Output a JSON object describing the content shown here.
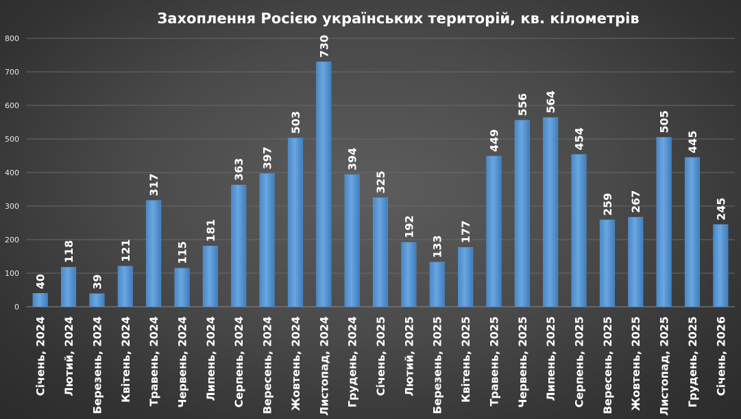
{
  "chart_data": {
    "type": "bar",
    "title": "Захоплення Росією українських територій,  кв. кілометрів",
    "xlabel": "",
    "ylabel": "",
    "ylim": [
      0,
      800
    ],
    "yticks": [
      0,
      100,
      200,
      300,
      400,
      500,
      600,
      700,
      800
    ],
    "grid": true,
    "legend": "none",
    "bar_color": "#5b9bd5",
    "categories": [
      "Січень, 2024",
      "Лютий, 2024",
      "Березень, 2024",
      "Квітень, 2024",
      "Травень, 2024",
      "Червень, 2024",
      "Липень, 2024",
      "Серпень, 2024",
      "Вересень, 2024",
      "Жовтень, 2024",
      "Листопад, 2024",
      "Грудень, 2024",
      "Січень, 2025",
      "Лютий, 2025",
      "Березень, 2025",
      "Квітень, 2025",
      "Травень, 2025",
      "Червень, 2025",
      "Липень, 2025",
      "Серпень, 2025",
      "Вересень, 2025",
      "Жовтень, 2025",
      "Листопад, 2025",
      "Грудень, 2025",
      "Січень, 2026"
    ],
    "values": [
      40,
      118,
      39,
      121,
      317,
      115,
      181,
      363,
      397,
      503,
      730,
      394,
      325,
      192,
      133,
      177,
      449,
      556,
      564,
      454,
      259,
      267,
      505,
      445,
      245
    ]
  }
}
